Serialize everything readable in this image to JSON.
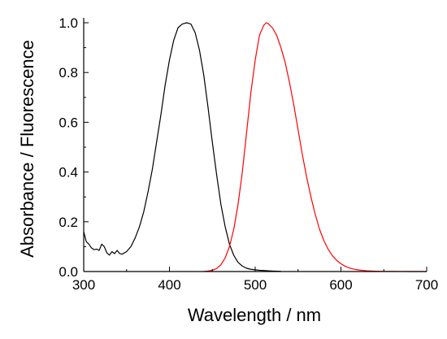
{
  "chart_data": {
    "type": "line",
    "xlabel": "Wavelength / nm",
    "ylabel": "Absorbance / Fluorescence",
    "xlim": [
      300,
      700
    ],
    "ylim": [
      0.0,
      1.0
    ],
    "x_ticks": [
      300,
      400,
      500,
      600,
      700
    ],
    "x_tick_labels": [
      "300",
      "400",
      "500",
      "600",
      "700"
    ],
    "y_ticks": [
      0.0,
      0.2,
      0.4,
      0.6,
      0.8,
      1.0
    ],
    "y_tick_labels": [
      "0.0",
      "0.2",
      "0.4",
      "0.6",
      "0.8",
      "1.0"
    ],
    "grid": false,
    "legend": "none",
    "series": [
      {
        "color": "#000000",
        "x": [
          300,
          303,
          306,
          309,
          312,
          315,
          318,
          321,
          324,
          327,
          330,
          333,
          336,
          339,
          342,
          345,
          350,
          355,
          360,
          365,
          370,
          375,
          380,
          385,
          390,
          395,
          400,
          405,
          410,
          415,
          420,
          425,
          430,
          435,
          440,
          445,
          450,
          455,
          460,
          465,
          470,
          475,
          480,
          485,
          490,
          495,
          500,
          505,
          510,
          515,
          520,
          525,
          530
        ],
        "y": [
          0.16,
          0.12,
          0.11,
          0.095,
          0.088,
          0.09,
          0.085,
          0.11,
          0.1,
          0.075,
          0.066,
          0.08,
          0.072,
          0.085,
          0.072,
          0.07,
          0.08,
          0.1,
          0.135,
          0.18,
          0.24,
          0.32,
          0.41,
          0.52,
          0.63,
          0.75,
          0.85,
          0.93,
          0.98,
          0.995,
          1.0,
          0.995,
          0.96,
          0.89,
          0.79,
          0.66,
          0.52,
          0.39,
          0.27,
          0.18,
          0.11,
          0.065,
          0.037,
          0.022,
          0.013,
          0.009,
          0.007,
          0.005,
          0.004,
          0.003,
          0.002,
          0.0015,
          0.001
        ]
      },
      {
        "color": "#ff0000",
        "x": [
          440,
          445,
          450,
          455,
          460,
          465,
          470,
          475,
          480,
          485,
          490,
          495,
          500,
          505,
          510,
          513,
          515,
          520,
          525,
          530,
          535,
          540,
          545,
          550,
          555,
          560,
          565,
          570,
          575,
          580,
          585,
          590,
          595,
          600,
          605,
          610,
          615,
          620,
          625,
          630,
          640,
          650,
          660,
          670,
          680,
          690,
          700
        ],
        "y": [
          0.0,
          0.002,
          0.005,
          0.012,
          0.027,
          0.055,
          0.1,
          0.17,
          0.27,
          0.4,
          0.56,
          0.72,
          0.85,
          0.95,
          0.99,
          1.0,
          0.997,
          0.98,
          0.95,
          0.9,
          0.84,
          0.76,
          0.67,
          0.57,
          0.47,
          0.38,
          0.3,
          0.23,
          0.17,
          0.125,
          0.09,
          0.064,
          0.045,
          0.031,
          0.021,
          0.014,
          0.0095,
          0.0065,
          0.0045,
          0.003,
          0.0015,
          0.0007,
          0.0003,
          0.00015,
          0.0001,
          5e-05,
          0.0
        ]
      }
    ]
  }
}
